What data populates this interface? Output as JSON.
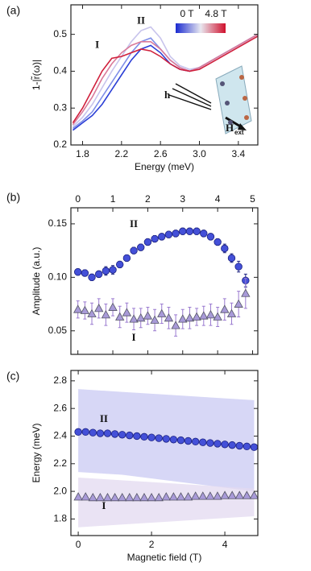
{
  "chart_data": [
    {
      "type": "line",
      "panel_label": "(a)",
      "ylabel": "1-|r̃(ω)|",
      "xlabel": "Energy (meV)",
      "xlim": [
        1.68,
        3.6
      ],
      "ylim": [
        0.2,
        0.58
      ],
      "xticks": [
        1.8,
        2.2,
        2.6,
        {
          "value": 3,
          "label": "3.0"
        },
        3.4
      ],
      "yticks": [
        0.2,
        0.3,
        0.4,
        0.5
      ],
      "x": [
        1.7,
        1.8,
        1.9,
        2.0,
        2.1,
        2.2,
        2.3,
        2.4,
        2.5,
        2.6,
        2.7,
        2.8,
        2.9,
        3.0,
        3.1,
        3.2,
        3.3,
        3.4,
        3.5,
        3.6
      ],
      "series": [
        {
          "color": "#2b3fd6",
          "values": [
            0.24,
            0.26,
            0.28,
            0.31,
            0.35,
            0.39,
            0.43,
            0.46,
            0.47,
            0.45,
            0.42,
            0.405,
            0.4,
            0.41,
            0.425,
            0.44,
            0.455,
            0.47,
            0.485,
            0.5
          ]
        },
        {
          "color": "#7f8ee8",
          "values": [
            0.245,
            0.265,
            0.29,
            0.33,
            0.37,
            0.41,
            0.45,
            0.48,
            0.49,
            0.46,
            0.43,
            0.41,
            0.4,
            0.41,
            0.425,
            0.44,
            0.455,
            0.47,
            0.485,
            0.5
          ]
        },
        {
          "color": "#c8c4ec",
          "values": [
            0.25,
            0.275,
            0.31,
            0.355,
            0.4,
            0.44,
            0.48,
            0.51,
            0.52,
            0.49,
            0.44,
            0.415,
            0.405,
            0.41,
            0.425,
            0.44,
            0.455,
            0.47,
            0.485,
            0.5
          ]
        },
        {
          "color": "#d97a9a",
          "values": [
            0.255,
            0.29,
            0.33,
            0.38,
            0.42,
            0.45,
            0.47,
            0.48,
            0.48,
            0.46,
            0.43,
            0.41,
            0.4,
            0.41,
            0.425,
            0.44,
            0.455,
            0.47,
            0.485,
            0.5
          ]
        },
        {
          "color": "#d0203c",
          "values": [
            0.26,
            0.3,
            0.35,
            0.4,
            0.435,
            0.44,
            0.45,
            0.46,
            0.455,
            0.44,
            0.42,
            0.405,
            0.4,
            0.405,
            0.42,
            0.435,
            0.45,
            0.465,
            0.48,
            0.495
          ]
        }
      ],
      "annotations": [
        "I",
        "II"
      ],
      "colorbar": {
        "min_label": "0 T",
        "max_label": "4.8 T",
        "colors": [
          "#1a2ad0",
          "#e8e8f0",
          "#d0102c"
        ]
      },
      "inset_labels": [
        "h",
        "H",
        "ext"
      ]
    },
    {
      "type": "scatter",
      "panel_label": "(b)",
      "ylabel": "Amplitude (a.u.)",
      "xlim": [
        -0.2,
        5.15
      ],
      "ylim": [
        0.028,
        0.165
      ],
      "xticks": [
        0,
        1,
        2,
        3,
        4,
        5
      ],
      "yticks": [
        {
          "value": 0.05,
          "label": "0.05"
        },
        {
          "value": 0.1,
          "label": "0.10"
        },
        0.15
      ],
      "x": [
        0,
        0.2,
        0.4,
        0.6,
        0.8,
        1,
        1.2,
        1.4,
        1.6,
        1.8,
        2,
        2.2,
        2.4,
        2.6,
        2.8,
        3,
        3.2,
        3.4,
        3.6,
        3.8,
        4,
        4.2,
        4.4,
        4.6,
        4.8
      ],
      "series": [
        {
          "marker": "circle",
          "color": "#4450d8",
          "edge": "#1a2080",
          "values": [
            0.105,
            0.104,
            0.1,
            0.103,
            0.106,
            0.107,
            0.112,
            0.118,
            0.125,
            0.128,
            0.133,
            0.136,
            0.138,
            0.14,
            0.141,
            0.143,
            0.143,
            0.143,
            0.141,
            0.138,
            0.133,
            0.127,
            0.118,
            0.11,
            0.097
          ],
          "errors": [
            0.003,
            0.003,
            0.003,
            0.003,
            0.004,
            0.004,
            0.003,
            0.003,
            0.003,
            0.003,
            0.003,
            0.003,
            0.003,
            0.003,
            0.003,
            0.003,
            0.003,
            0.003,
            0.003,
            0.003,
            0.003,
            0.004,
            0.004,
            0.005,
            0.006
          ]
        },
        {
          "marker": "triangle",
          "color": "#a89ad8",
          "edge": "#555566",
          "error_color": "#9a7ad0",
          "values": [
            0.07,
            0.069,
            0.066,
            0.071,
            0.065,
            0.072,
            0.063,
            0.067,
            0.061,
            0.062,
            0.064,
            0.06,
            0.066,
            0.062,
            0.055,
            0.061,
            0.062,
            0.063,
            0.064,
            0.065,
            0.063,
            0.07,
            0.066,
            0.075,
            0.085
          ],
          "errors": [
            0.008,
            0.008,
            0.01,
            0.009,
            0.01,
            0.008,
            0.01,
            0.009,
            0.01,
            0.009,
            0.008,
            0.01,
            0.009,
            0.01,
            0.01,
            0.009,
            0.01,
            0.008,
            0.009,
            0.01,
            0.009,
            0.01,
            0.01,
            0.012,
            0.014
          ]
        }
      ],
      "annotations": [
        "II",
        "I"
      ]
    },
    {
      "type": "scatter",
      "panel_label": "(c)",
      "ylabel": "Energy (meV)",
      "xlabel": "Magnetic field (T)",
      "xlim": [
        -0.2,
        4.9
      ],
      "ylim": [
        1.68,
        2.875
      ],
      "xticks": [
        0,
        2,
        4
      ],
      "yticks": [
        1.8,
        {
          "value": 2,
          "label": "2.0"
        },
        2.2,
        2.4,
        2.6,
        2.8
      ],
      "x": [
        0,
        0.2,
        0.4,
        0.6,
        0.8,
        1,
        1.2,
        1.4,
        1.6,
        1.8,
        2,
        2.2,
        2.4,
        2.6,
        2.8,
        3,
        3.2,
        3.4,
        3.6,
        3.8,
        4,
        4.2,
        4.4,
        4.6,
        4.8
      ],
      "bands": [
        {
          "color": "#c9caf3",
          "x": [
            0,
            1.2,
            2.4,
            3.6,
            4.8
          ],
          "upper": [
            2.74,
            2.72,
            2.7,
            2.68,
            2.66
          ],
          "lower": [
            2.14,
            2.12,
            2.08,
            2.04,
            2.0
          ]
        },
        {
          "color": "#e3d9f0",
          "x": [
            0,
            1.2,
            2.4,
            3.6,
            4.8
          ],
          "upper": [
            2.1,
            2.08,
            2.06,
            2.04,
            2.02
          ],
          "lower": [
            1.74,
            1.76,
            1.78,
            1.8,
            1.82
          ]
        }
      ],
      "series": [
        {
          "marker": "circle",
          "color": "#4450d8",
          "edge": "#1a2080",
          "values": [
            2.43,
            2.43,
            2.425,
            2.42,
            2.42,
            2.415,
            2.41,
            2.405,
            2.4,
            2.395,
            2.39,
            2.385,
            2.38,
            2.375,
            2.37,
            2.365,
            2.36,
            2.355,
            2.35,
            2.345,
            2.34,
            2.335,
            2.33,
            2.325,
            2.32
          ]
        },
        {
          "marker": "triangle",
          "color": "#a89ad8",
          "edge": "#555566",
          "values": [
            1.96,
            1.96,
            1.955,
            1.955,
            1.955,
            1.955,
            1.955,
            1.955,
            1.955,
            1.955,
            1.955,
            1.955,
            1.96,
            1.96,
            1.96,
            1.96,
            1.965,
            1.965,
            1.965,
            1.965,
            1.97,
            1.97,
            1.97,
            1.97,
            1.97
          ]
        }
      ],
      "annotations": [
        "II",
        "I"
      ]
    }
  ]
}
